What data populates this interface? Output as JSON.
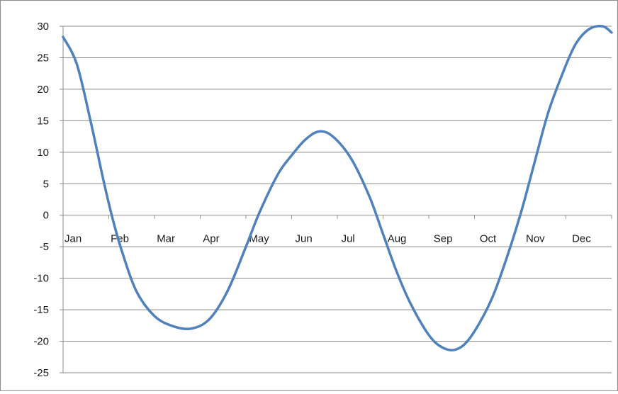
{
  "chart_data": {
    "type": "line",
    "title": "",
    "xlabel": "",
    "ylabel": "",
    "ylim": [
      -25,
      30
    ],
    "yticks": [
      30,
      25,
      20,
      15,
      10,
      5,
      0,
      -5,
      -10,
      -15,
      -20,
      -25
    ],
    "categories": [
      "Jan",
      "Feb",
      "Mar",
      "Apr",
      "May",
      "Jun",
      "Jul",
      "Aug",
      "Sep",
      "Oct",
      "Nov",
      "Dec"
    ],
    "grid": "horizontal",
    "legend": "none",
    "series": [
      {
        "color": "#4f81bd",
        "points": [
          {
            "x": 0.0,
            "y": 28.3
          },
          {
            "x": 0.3,
            "y": 24.0
          },
          {
            "x": 0.6,
            "y": 15.0
          },
          {
            "x": 0.9,
            "y": 5.0
          },
          {
            "x": 1.1,
            "y": -1.0
          },
          {
            "x": 1.3,
            "y": -6.0
          },
          {
            "x": 1.6,
            "y": -12.0
          },
          {
            "x": 2.0,
            "y": -16.0
          },
          {
            "x": 2.4,
            "y": -17.6
          },
          {
            "x": 2.8,
            "y": -18.0
          },
          {
            "x": 3.2,
            "y": -16.5
          },
          {
            "x": 3.6,
            "y": -12.0
          },
          {
            "x": 4.0,
            "y": -5.0
          },
          {
            "x": 4.3,
            "y": 0.5
          },
          {
            "x": 4.7,
            "y": 6.5
          },
          {
            "x": 5.0,
            "y": 9.5
          },
          {
            "x": 5.3,
            "y": 12.0
          },
          {
            "x": 5.6,
            "y": 13.3
          },
          {
            "x": 5.9,
            "y": 12.5
          },
          {
            "x": 6.3,
            "y": 9.0
          },
          {
            "x": 6.7,
            "y": 3.0
          },
          {
            "x": 7.0,
            "y": -3.0
          },
          {
            "x": 7.3,
            "y": -9.0
          },
          {
            "x": 7.6,
            "y": -14.0
          },
          {
            "x": 8.0,
            "y": -19.0
          },
          {
            "x": 8.3,
            "y": -21.0
          },
          {
            "x": 8.6,
            "y": -21.3
          },
          {
            "x": 8.9,
            "y": -19.5
          },
          {
            "x": 9.3,
            "y": -14.5
          },
          {
            "x": 9.6,
            "y": -9.0
          },
          {
            "x": 10.0,
            "y": 0.0
          },
          {
            "x": 10.3,
            "y": 8.0
          },
          {
            "x": 10.6,
            "y": 16.0
          },
          {
            "x": 10.9,
            "y": 22.0
          },
          {
            "x": 11.2,
            "y": 27.0
          },
          {
            "x": 11.5,
            "y": 29.5
          },
          {
            "x": 11.8,
            "y": 30.0
          },
          {
            "x": 12.0,
            "y": 29.0
          }
        ]
      }
    ]
  }
}
